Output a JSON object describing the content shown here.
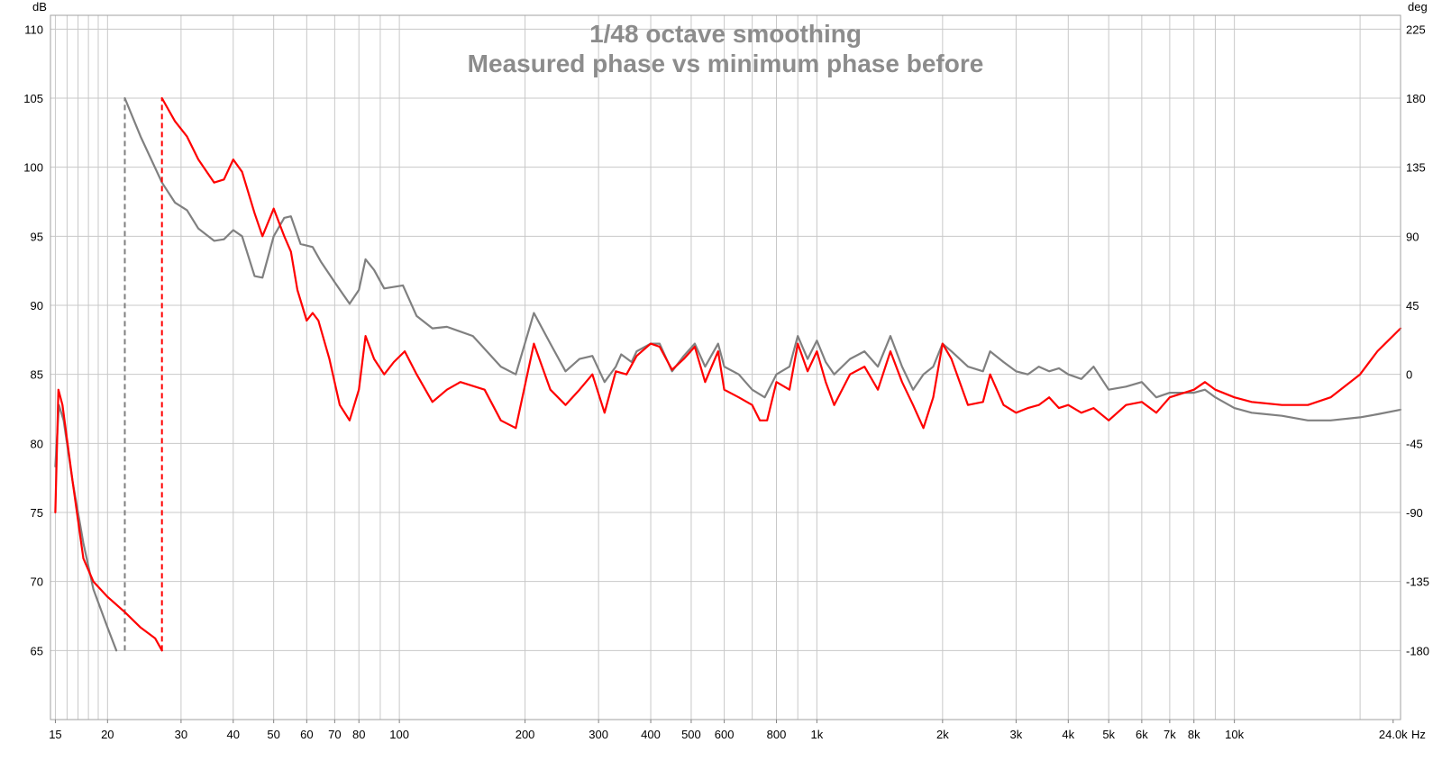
{
  "chart_data": {
    "type": "line",
    "title_lines": [
      "1/48 octave smoothing",
      "Measured phase vs minimum phase before"
    ],
    "x_scale": "log",
    "xlim": [
      14.6,
      25000
    ],
    "x_unit_label": "Hz",
    "y_left_label": "dB",
    "y_right_label": "deg",
    "ylim_left": [
      60,
      111
    ],
    "ylim_right": [
      -225,
      234
    ],
    "x_tick_labels": [
      {
        "value": 15,
        "label": "15"
      },
      {
        "value": 20,
        "label": "20"
      },
      {
        "value": 30,
        "label": "30"
      },
      {
        "value": 40,
        "label": "40"
      },
      {
        "value": 50,
        "label": "50"
      },
      {
        "value": 60,
        "label": "60"
      },
      {
        "value": 70,
        "label": "70"
      },
      {
        "value": 80,
        "label": "80"
      },
      {
        "value": 100,
        "label": "100"
      },
      {
        "value": 200,
        "label": "200"
      },
      {
        "value": 300,
        "label": "300"
      },
      {
        "value": 400,
        "label": "400"
      },
      {
        "value": 500,
        "label": "500"
      },
      {
        "value": 600,
        "label": "600"
      },
      {
        "value": 800,
        "label": "800"
      },
      {
        "value": 1000,
        "label": "1k"
      },
      {
        "value": 2000,
        "label": "2k"
      },
      {
        "value": 3000,
        "label": "3k"
      },
      {
        "value": 4000,
        "label": "4k"
      },
      {
        "value": 5000,
        "label": "5k"
      },
      {
        "value": 6000,
        "label": "6k"
      },
      {
        "value": 7000,
        "label": "7k"
      },
      {
        "value": 8000,
        "label": "8k"
      },
      {
        "value": 10000,
        "label": "10k"
      },
      {
        "value": 24000,
        "label": "24.0k"
      }
    ],
    "x_gridlines": [
      15,
      16,
      17,
      18,
      19,
      20,
      30,
      40,
      50,
      60,
      70,
      80,
      90,
      100,
      200,
      300,
      400,
      500,
      600,
      700,
      800,
      900,
      1000,
      2000,
      3000,
      4000,
      5000,
      6000,
      7000,
      8000,
      9000,
      10000,
      20000
    ],
    "y_left_ticks": [
      65,
      70,
      75,
      80,
      85,
      90,
      95,
      100,
      105,
      110
    ],
    "y_right_ticks": [
      -180,
      -135,
      -90,
      -45,
      0,
      45,
      90,
      135,
      180,
      225
    ],
    "grid": true,
    "series": [
      {
        "color": "#808080",
        "dashed_wrap_at": 22,
        "points": [
          [
            15.0,
            -60
          ],
          [
            15.3,
            -20
          ],
          [
            15.7,
            -30
          ],
          [
            16.5,
            -70
          ],
          [
            17.5,
            -110
          ],
          [
            18.5,
            -140
          ],
          [
            20,
            -165
          ],
          [
            21.0,
            -180
          ],
          [
            22,
            180
          ],
          [
            24,
            155
          ],
          [
            27,
            125
          ],
          [
            29,
            112
          ],
          [
            31,
            107
          ],
          [
            33,
            95
          ],
          [
            36,
            87
          ],
          [
            38,
            88
          ],
          [
            40,
            94
          ],
          [
            42,
            90
          ],
          [
            45,
            64
          ],
          [
            47,
            63
          ],
          [
            50,
            90
          ],
          [
            53,
            102
          ],
          [
            55,
            103
          ],
          [
            58,
            85
          ],
          [
            62,
            83
          ],
          [
            65,
            73
          ],
          [
            70,
            60
          ],
          [
            76,
            46
          ],
          [
            80,
            55
          ],
          [
            83,
            75
          ],
          [
            87,
            68
          ],
          [
            92,
            56
          ],
          [
            97,
            57
          ],
          [
            102,
            58
          ],
          [
            110,
            38
          ],
          [
            120,
            30
          ],
          [
            130,
            31
          ],
          [
            150,
            25
          ],
          [
            175,
            5
          ],
          [
            190,
            0
          ],
          [
            210,
            40
          ],
          [
            230,
            20
          ],
          [
            250,
            2
          ],
          [
            270,
            10
          ],
          [
            290,
            12
          ],
          [
            310,
            -5
          ],
          [
            330,
            5
          ],
          [
            340,
            13
          ],
          [
            360,
            8
          ],
          [
            370,
            15
          ],
          [
            400,
            20
          ],
          [
            420,
            20
          ],
          [
            450,
            2
          ],
          [
            480,
            12
          ],
          [
            510,
            20
          ],
          [
            540,
            5
          ],
          [
            580,
            20
          ],
          [
            600,
            5
          ],
          [
            650,
            0
          ],
          [
            700,
            -10
          ],
          [
            750,
            -15
          ],
          [
            800,
            0
          ],
          [
            860,
            5
          ],
          [
            900,
            25
          ],
          [
            950,
            10
          ],
          [
            1000,
            22
          ],
          [
            1050,
            8
          ],
          [
            1100,
            0
          ],
          [
            1200,
            10
          ],
          [
            1300,
            15
          ],
          [
            1400,
            5
          ],
          [
            1500,
            25
          ],
          [
            1600,
            5
          ],
          [
            1700,
            -10
          ],
          [
            1800,
            0
          ],
          [
            1900,
            5
          ],
          [
            2000,
            20
          ],
          [
            2100,
            15
          ],
          [
            2300,
            5
          ],
          [
            2500,
            2
          ],
          [
            2600,
            15
          ],
          [
            2800,
            8
          ],
          [
            3000,
            2
          ],
          [
            3200,
            0
          ],
          [
            3400,
            5
          ],
          [
            3600,
            2
          ],
          [
            3800,
            4
          ],
          [
            4000,
            0
          ],
          [
            4300,
            -3
          ],
          [
            4600,
            5
          ],
          [
            5000,
            -10
          ],
          [
            5500,
            -8
          ],
          [
            6000,
            -5
          ],
          [
            6500,
            -15
          ],
          [
            7000,
            -12
          ],
          [
            8000,
            -12
          ],
          [
            8500,
            -10
          ],
          [
            9000,
            -15
          ],
          [
            10000,
            -22
          ],
          [
            11000,
            -25
          ],
          [
            13000,
            -27
          ],
          [
            15000,
            -30
          ],
          [
            17000,
            -30
          ],
          [
            20000,
            -28
          ],
          [
            22000,
            -26
          ],
          [
            25000,
            -23
          ]
        ]
      },
      {
        "color": "#ff0000",
        "dashed_wrap_at": 27,
        "points": [
          [
            15.0,
            -90
          ],
          [
            15.25,
            -10
          ],
          [
            15.6,
            -20
          ],
          [
            16.5,
            -70
          ],
          [
            17.5,
            -120
          ],
          [
            18.5,
            -135
          ],
          [
            20,
            -145
          ],
          [
            22,
            -155
          ],
          [
            24,
            -165
          ],
          [
            26,
            -172
          ],
          [
            27,
            -180
          ],
          [
            27,
            180
          ],
          [
            29,
            165
          ],
          [
            31,
            155
          ],
          [
            33,
            140
          ],
          [
            36,
            125
          ],
          [
            38,
            127
          ],
          [
            40,
            140
          ],
          [
            42,
            132
          ],
          [
            45,
            105
          ],
          [
            47,
            90
          ],
          [
            50,
            108
          ],
          [
            53,
            90
          ],
          [
            55,
            80
          ],
          [
            57,
            55
          ],
          [
            60,
            35
          ],
          [
            62,
            40
          ],
          [
            64,
            35
          ],
          [
            68,
            10
          ],
          [
            72,
            -20
          ],
          [
            76,
            -30
          ],
          [
            80,
            -10
          ],
          [
            83,
            25
          ],
          [
            87,
            10
          ],
          [
            92,
            0
          ],
          [
            97,
            8
          ],
          [
            103,
            15
          ],
          [
            110,
            0
          ],
          [
            120,
            -18
          ],
          [
            130,
            -10
          ],
          [
            140,
            -5
          ],
          [
            160,
            -10
          ],
          [
            175,
            -30
          ],
          [
            190,
            -35
          ],
          [
            210,
            20
          ],
          [
            230,
            -10
          ],
          [
            250,
            -20
          ],
          [
            270,
            -10
          ],
          [
            290,
            0
          ],
          [
            310,
            -25
          ],
          [
            330,
            2
          ],
          [
            350,
            0
          ],
          [
            370,
            12
          ],
          [
            400,
            20
          ],
          [
            420,
            18
          ],
          [
            450,
            3
          ],
          [
            480,
            10
          ],
          [
            510,
            18
          ],
          [
            540,
            -5
          ],
          [
            580,
            15
          ],
          [
            600,
            -10
          ],
          [
            650,
            -15
          ],
          [
            700,
            -20
          ],
          [
            730,
            -30
          ],
          [
            760,
            -30
          ],
          [
            800,
            -5
          ],
          [
            860,
            -10
          ],
          [
            900,
            20
          ],
          [
            950,
            2
          ],
          [
            1000,
            15
          ],
          [
            1050,
            -5
          ],
          [
            1100,
            -20
          ],
          [
            1200,
            0
          ],
          [
            1300,
            5
          ],
          [
            1400,
            -10
          ],
          [
            1500,
            15
          ],
          [
            1600,
            -5
          ],
          [
            1700,
            -20
          ],
          [
            1800,
            -35
          ],
          [
            1900,
            -15
          ],
          [
            2000,
            20
          ],
          [
            2100,
            10
          ],
          [
            2300,
            -20
          ],
          [
            2500,
            -18
          ],
          [
            2600,
            0
          ],
          [
            2800,
            -20
          ],
          [
            3000,
            -25
          ],
          [
            3200,
            -22
          ],
          [
            3400,
            -20
          ],
          [
            3600,
            -15
          ],
          [
            3800,
            -22
          ],
          [
            4000,
            -20
          ],
          [
            4300,
            -25
          ],
          [
            4600,
            -22
          ],
          [
            5000,
            -30
          ],
          [
            5500,
            -20
          ],
          [
            6000,
            -18
          ],
          [
            6500,
            -25
          ],
          [
            7000,
            -15
          ],
          [
            8000,
            -10
          ],
          [
            8500,
            -5
          ],
          [
            9000,
            -10
          ],
          [
            10000,
            -15
          ],
          [
            11000,
            -18
          ],
          [
            13000,
            -20
          ],
          [
            15000,
            -20
          ],
          [
            17000,
            -15
          ],
          [
            20000,
            0
          ],
          [
            22000,
            15
          ],
          [
            25000,
            30
          ]
        ]
      }
    ]
  }
}
